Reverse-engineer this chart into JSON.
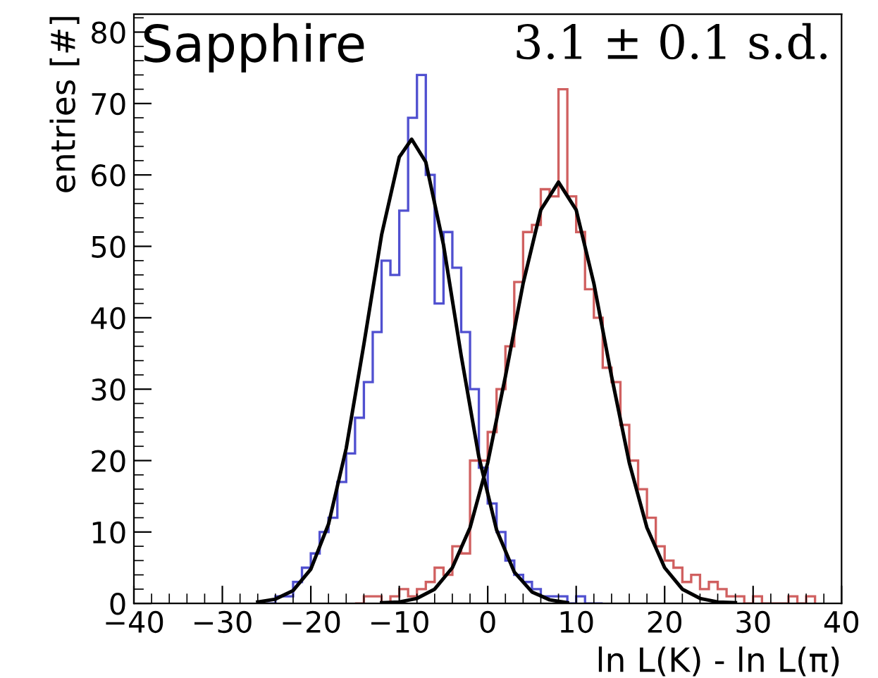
{
  "chart_data": {
    "type": "histogram",
    "xlabel": "ln L(K) - ln L(π)",
    "ylabel": "entries [#]",
    "annotations": [
      "Sapphire",
      "3.1 ± 0.1 s.d."
    ],
    "xlim": [
      -40,
      40
    ],
    "xticks": [
      -40,
      -30,
      -20,
      -10,
      0,
      10,
      20,
      30,
      40
    ],
    "ylim": [
      0,
      82.5
    ],
    "yticks": [
      0,
      10,
      20,
      30,
      40,
      50,
      60,
      70,
      80
    ],
    "grid": false,
    "legend": false,
    "series": [
      {
        "color": "#5050d0",
        "bins": [
          -25,
          -24,
          -23,
          -22,
          -21,
          -20,
          -19,
          -18,
          -17,
          -16,
          -15,
          -14,
          -13,
          -12,
          -11,
          -10,
          -9,
          -8,
          -7,
          -6,
          -5,
          -4,
          -3,
          -2,
          -1,
          0,
          1,
          2,
          3,
          4,
          5,
          6,
          7,
          8,
          9,
          10,
          11,
          12,
          13
        ],
        "values": [
          0,
          1,
          1,
          3,
          5,
          7,
          10,
          12,
          17,
          21,
          26,
          31,
          38,
          48,
          46,
          55,
          68,
          74,
          60,
          42,
          52,
          47,
          38,
          30,
          19,
          14,
          10,
          6,
          4,
          3,
          2,
          1,
          1,
          1,
          0,
          1,
          0,
          0
        ]
      },
      {
        "color": "#d06060",
        "bins": [
          -15,
          -14,
          -13,
          -12,
          -11,
          -10,
          -9,
          -8,
          -7,
          -6,
          -5,
          -4,
          -3,
          -2,
          -1,
          0,
          1,
          2,
          3,
          4,
          5,
          6,
          7,
          8,
          9,
          10,
          11,
          12,
          13,
          14,
          15,
          16,
          17,
          18,
          19,
          20,
          21,
          22,
          23,
          24,
          25,
          26,
          27,
          28,
          29,
          30,
          31,
          32,
          33,
          34,
          35,
          36,
          37
        ],
        "values": [
          0,
          1,
          1,
          0,
          1,
          2,
          1,
          2,
          3,
          5,
          4,
          8,
          7,
          20,
          20,
          24,
          30,
          36,
          45,
          52,
          53,
          58,
          57,
          72,
          57,
          52,
          44,
          40,
          33,
          31,
          25,
          20,
          16,
          12,
          8,
          6,
          5,
          3,
          4,
          2,
          3,
          2,
          1,
          1,
          0,
          1,
          0,
          0,
          0,
          1,
          0,
          1
        ]
      },
      {
        "type": "line",
        "color": "#000000",
        "x": [
          -26,
          -24,
          -22,
          -20,
          -18,
          -16,
          -14,
          -12,
          -10,
          -8.6,
          -7,
          -5,
          -3,
          -1,
          1,
          3,
          5,
          7,
          9
        ],
        "values": [
          0.2,
          0.6,
          1.8,
          4.8,
          11.1,
          21.7,
          36.3,
          51.6,
          62.5,
          65,
          61.8,
          50.2,
          34.7,
          20.5,
          10.3,
          4.4,
          1.6,
          0.5,
          0.1
        ]
      },
      {
        "type": "line",
        "color": "#000000",
        "x": [
          -12,
          -10,
          -8,
          -6,
          -4,
          -2,
          0,
          2,
          4,
          6,
          8,
          10,
          12,
          14,
          16,
          18,
          20,
          22,
          24,
          26,
          28
        ],
        "values": [
          0.1,
          0.2,
          0.7,
          2.0,
          5.0,
          10.6,
          19.7,
          31.8,
          44.8,
          55.1,
          59,
          55.1,
          44.8,
          31.8,
          19.7,
          10.6,
          5.0,
          2.0,
          0.7,
          0.2,
          0.1
        ]
      }
    ]
  }
}
